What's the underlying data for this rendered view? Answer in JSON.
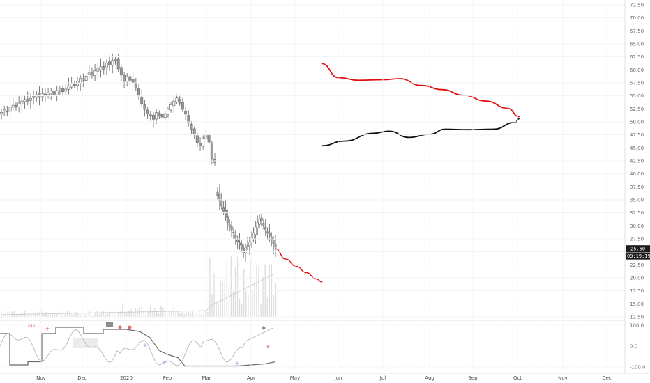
{
  "chart_data": {
    "type": "candlestick",
    "price_axis": {
      "ticks": [
        "72.50",
        "70.00",
        "67.50",
        "65.00",
        "62.50",
        "60.00",
        "57.50",
        "55.00",
        "52.50",
        "50.00",
        "47.50",
        "45.00",
        "42.50",
        "40.00",
        "37.50",
        "35.00",
        "32.50",
        "30.00",
        "27.50",
        "25.00",
        "22.50",
        "20.00",
        "17.50",
        "15.00",
        "12.50"
      ],
      "range": [
        12.5,
        72.5
      ]
    },
    "last_price": {
      "value": "25.60",
      "time": "09:19:19"
    },
    "time_axis": {
      "ticks": [
        "Nov",
        "Dec",
        "2020",
        "Feb",
        "Mar",
        "Apr",
        "May",
        "Jun",
        "Jul",
        "Aug",
        "Sep",
        "Oct",
        "Nov",
        "Dec"
      ]
    },
    "price_closes": [
      51.8,
      52.3,
      52.0,
      52.9,
      53.2,
      52.8,
      53.6,
      54.0,
      54.3,
      53.8,
      54.5,
      54.9,
      55.2,
      54.7,
      55.4,
      55.0,
      55.6,
      55.9,
      55.3,
      56.0,
      56.4,
      55.8,
      56.3,
      56.9,
      57.3,
      57.0,
      57.8,
      58.4,
      58.0,
      58.8,
      59.4,
      59.0,
      59.8,
      60.2,
      60.6,
      60.1,
      61.3,
      60.9,
      61.8,
      62.0,
      60.2,
      59.0,
      57.8,
      58.6,
      58.0,
      57.5,
      56.5,
      55.0,
      53.5,
      52.4,
      51.6,
      51.1,
      50.5,
      51.8,
      51.2,
      50.9,
      51.6,
      52.4,
      53.3,
      54.0,
      54.6,
      53.6,
      52.4,
      51.5,
      49.8,
      48.6,
      47.5,
      46.0,
      45.4,
      46.8,
      47.6,
      46.1,
      43.0,
      42.2
    ],
    "gap_closes": [
      35.8,
      34.9,
      33.8,
      32.8,
      31.6,
      30.6,
      29.9,
      29.1,
      28.6,
      27.5,
      27.0,
      26.3,
      25.6,
      24.8,
      25.9,
      26.2,
      26.9,
      27.7,
      28.6,
      29.8,
      30.6,
      31.3,
      30.9,
      30.1,
      29.2,
      28.6,
      28.1,
      27.4,
      26.6,
      25.9
    ],
    "series": [
      {
        "name": "",
        "color": "#e01010",
        "kind": "projection-from-last",
        "points": [
          [
            "Apr 18",
            25.6
          ],
          [
            "Apr 25",
            23.6
          ],
          [
            "May 2",
            22.2
          ],
          [
            "May 9",
            21.0
          ],
          [
            "May 16",
            19.8
          ],
          [
            "May 20",
            19.2
          ]
        ]
      },
      {
        "name": "",
        "color": "#e01010",
        "kind": "upper-band",
        "points": [
          [
            "May 20",
            61.2
          ],
          [
            "Jun 1",
            58.5
          ],
          [
            "Jun 15",
            58.0
          ],
          [
            "Jul 1",
            58.1
          ],
          [
            "Jul 12",
            58.3
          ],
          [
            "Jul 26",
            57.0
          ],
          [
            "Aug 10",
            56.2
          ],
          [
            "Aug 25",
            55.1
          ],
          [
            "Sep 10",
            54.0
          ],
          [
            "Sep 25",
            52.6
          ],
          [
            "Oct 2",
            51.0
          ]
        ]
      },
      {
        "name": "",
        "color": "#111111",
        "kind": "lower-band",
        "points": [
          [
            "May 20",
            45.4
          ],
          [
            "Jun 5",
            46.3
          ],
          [
            "Jun 25",
            47.8
          ],
          [
            "Jul 5",
            48.2
          ],
          [
            "Jul 18",
            47.0
          ],
          [
            "Aug 1",
            47.6
          ],
          [
            "Aug 12",
            48.6
          ],
          [
            "Aug 28",
            48.5
          ],
          [
            "Sep 15",
            48.6
          ],
          [
            "Sep 30",
            49.9
          ],
          [
            "Oct 2",
            50.6
          ]
        ]
      }
    ],
    "oscillator": {
      "ticks": [
        "100.0",
        "0.0",
        "-100.0"
      ],
      "range": [
        -100,
        100
      ],
      "labels": [
        "DIV"
      ]
    },
    "grid": true,
    "legend": "none"
  }
}
